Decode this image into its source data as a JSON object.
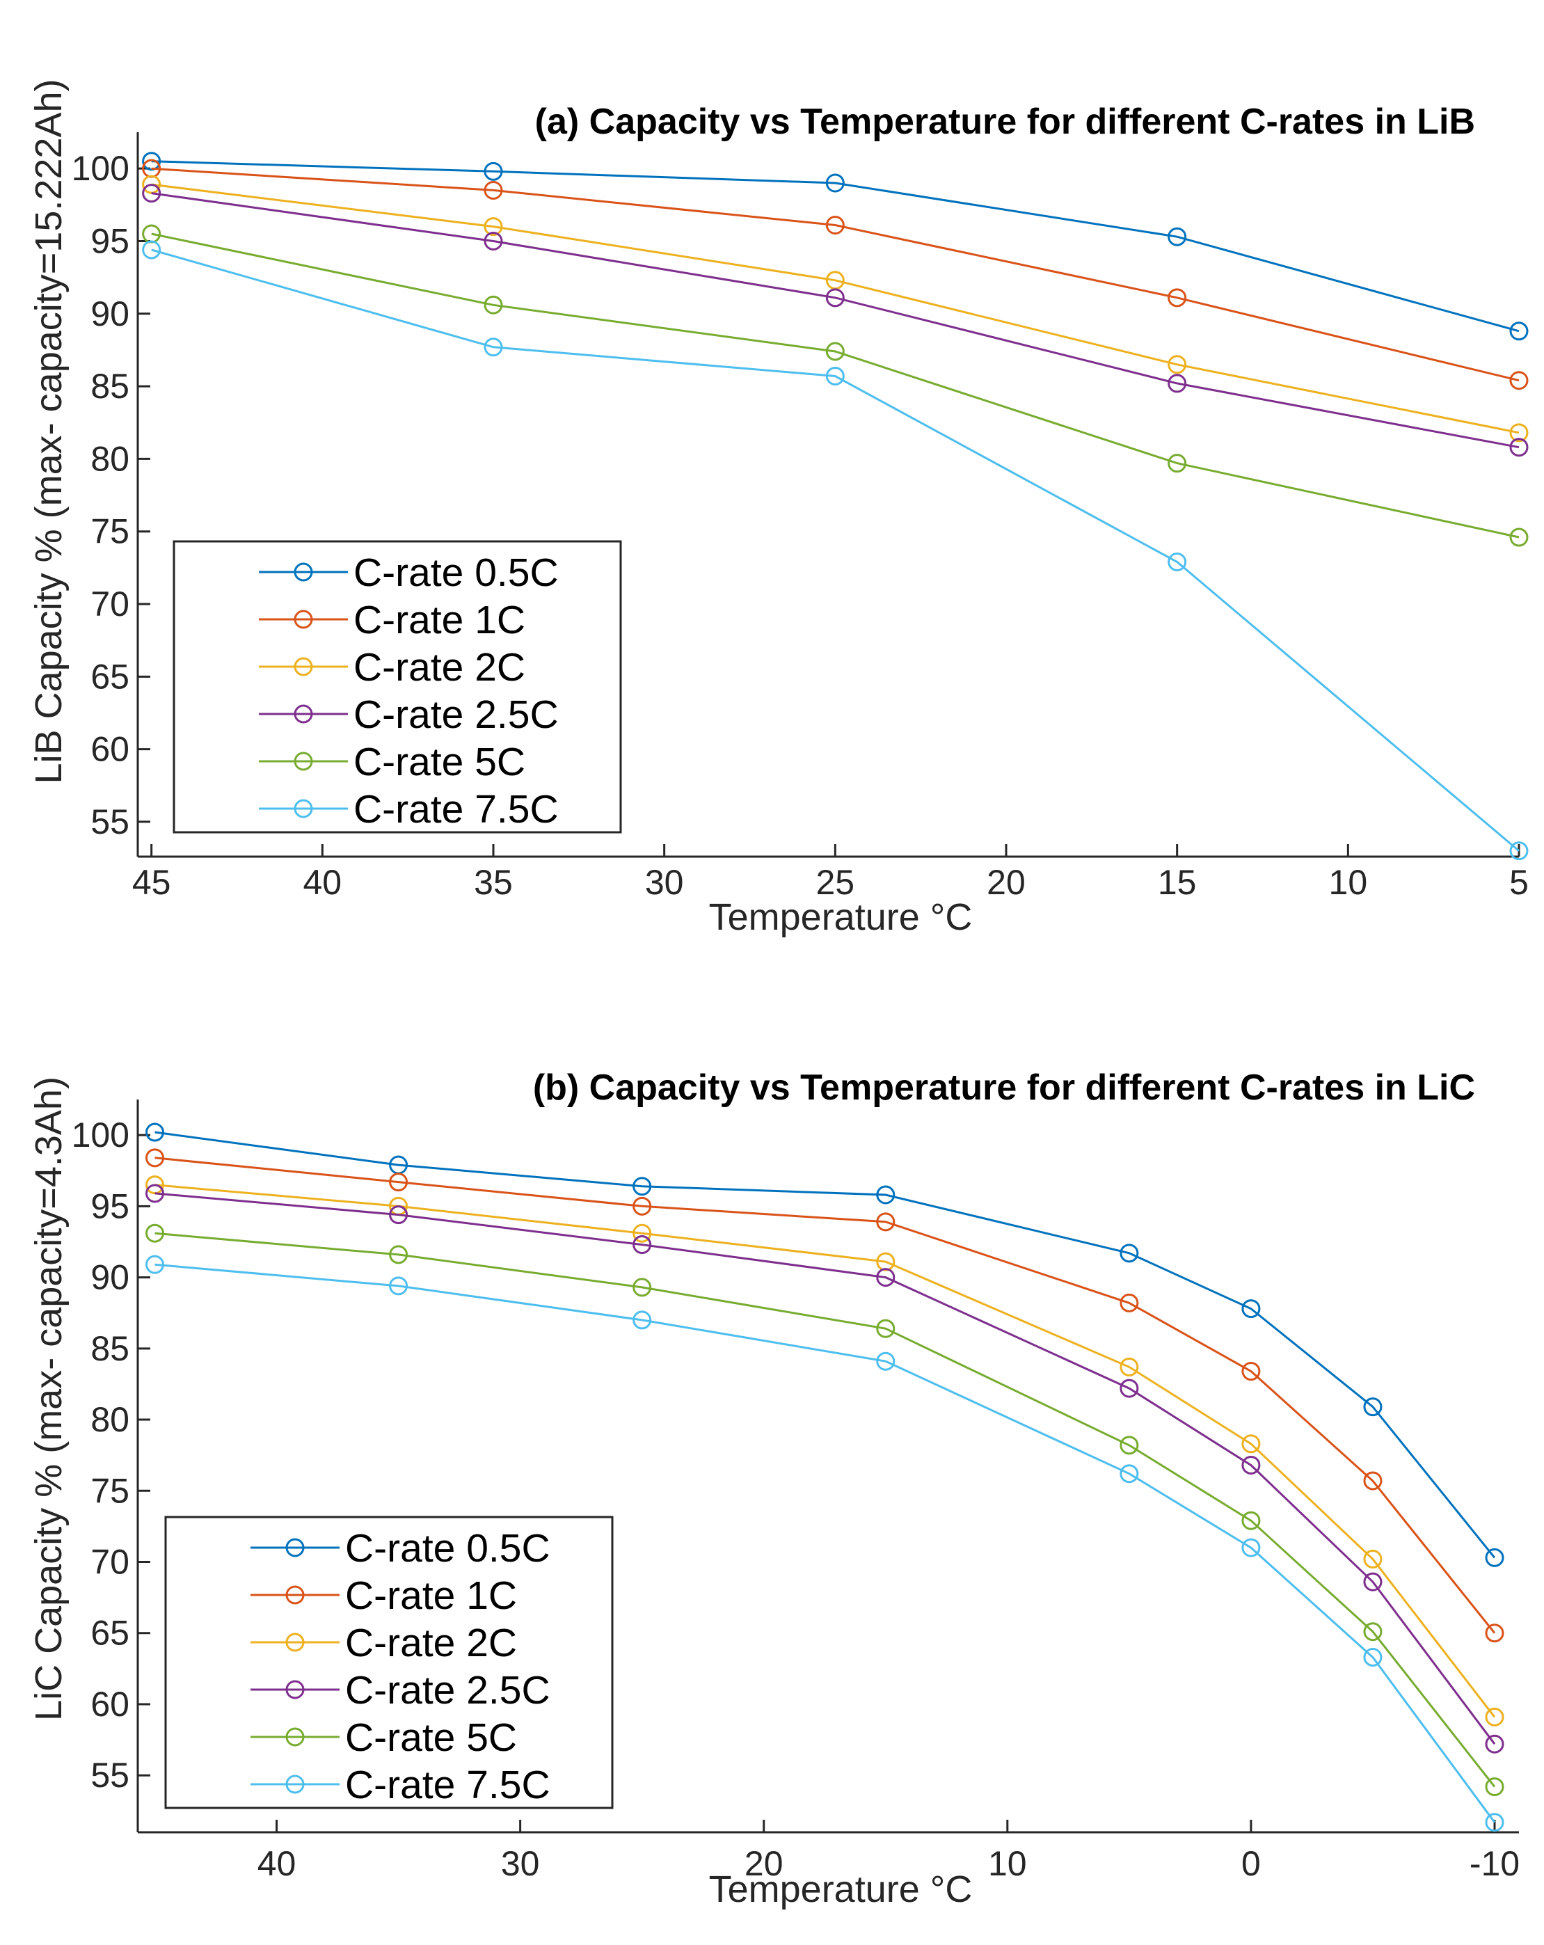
{
  "chart_data": [
    {
      "type": "line",
      "title": "(a) Capacity vs Temperature for different C-rates in LiB",
      "xlabel": "Temperature °C",
      "ylabel": "LiB Capacity % (max- capacity=15.222Ah)",
      "x_reversed": true,
      "xlim": [
        45.4,
        5
      ],
      "ylim": [
        52.6,
        102.5
      ],
      "xticks": [
        45,
        40,
        35,
        30,
        25,
        20,
        15,
        10,
        5
      ],
      "yticks": [
        55,
        60,
        65,
        70,
        75,
        80,
        85,
        90,
        95,
        100
      ],
      "legend_position": "lower-left",
      "x": [
        45,
        35,
        25,
        15,
        5
      ],
      "series": [
        {
          "name": "C-rate 0.5C",
          "color": "#0072BD",
          "values": [
            100.5,
            99.8,
            99.0,
            95.3,
            88.8
          ]
        },
        {
          "name": "C-rate 1C",
          "color": "#D95319",
          "values": [
            100.0,
            98.5,
            96.1,
            91.1,
            85.4
          ]
        },
        {
          "name": "C-rate 2C",
          "color": "#EDB120",
          "values": [
            98.9,
            96.0,
            92.3,
            86.5,
            81.8
          ]
        },
        {
          "name": "C-rate 2.5C",
          "color": "#7E2F8E",
          "values": [
            98.3,
            95.0,
            91.1,
            85.2,
            80.8
          ]
        },
        {
          "name": "C-rate 5C",
          "color": "#77AC30",
          "values": [
            95.5,
            90.6,
            87.4,
            79.7,
            74.6
          ]
        },
        {
          "name": "C-rate 7.5C",
          "color": "#4DBEEE",
          "values": [
            94.4,
            87.7,
            85.7,
            72.9,
            53.0
          ]
        }
      ]
    },
    {
      "type": "line",
      "title": "(b) Capacity vs Temperature for different C-rates in LiC",
      "xlabel": "Temperature °C",
      "ylabel": "LiC Capacity % (max- capacity=4.3Ah)",
      "x_reversed": true,
      "xlim": [
        45.7,
        -11
      ],
      "ylim": [
        51,
        102.5
      ],
      "xticks": [
        40,
        30,
        20,
        10,
        0,
        -10
      ],
      "yticks": [
        55,
        60,
        65,
        70,
        75,
        80,
        85,
        90,
        95,
        100
      ],
      "legend_position": "lower-left",
      "x": [
        45,
        35,
        25,
        15,
        5,
        0,
        -5,
        -10
      ],
      "series": [
        {
          "name": "C-rate 0.5C",
          "color": "#0072BD",
          "values": [
            100.2,
            97.9,
            96.4,
            95.8,
            91.7,
            87.8,
            80.9,
            70.3
          ]
        },
        {
          "name": "C-rate 1C",
          "color": "#D95319",
          "values": [
            98.4,
            96.7,
            95.0,
            93.9,
            88.2,
            83.4,
            75.7,
            65.0
          ]
        },
        {
          "name": "C-rate 2C",
          "color": "#EDB120",
          "values": [
            96.5,
            95.0,
            93.1,
            91.1,
            83.7,
            78.3,
            70.2,
            59.1
          ]
        },
        {
          "name": "C-rate 2.5C",
          "color": "#7E2F8E",
          "values": [
            95.9,
            94.4,
            92.3,
            90.0,
            82.2,
            76.8,
            68.6,
            57.2
          ]
        },
        {
          "name": "C-rate 5C",
          "color": "#77AC30",
          "values": [
            93.1,
            91.6,
            89.3,
            86.4,
            78.2,
            72.9,
            65.1,
            54.2
          ]
        },
        {
          "name": "C-rate 7.5C",
          "color": "#4DBEEE",
          "values": [
            90.9,
            89.4,
            87.0,
            84.1,
            76.2,
            71.0,
            63.3,
            51.7
          ]
        }
      ]
    }
  ]
}
